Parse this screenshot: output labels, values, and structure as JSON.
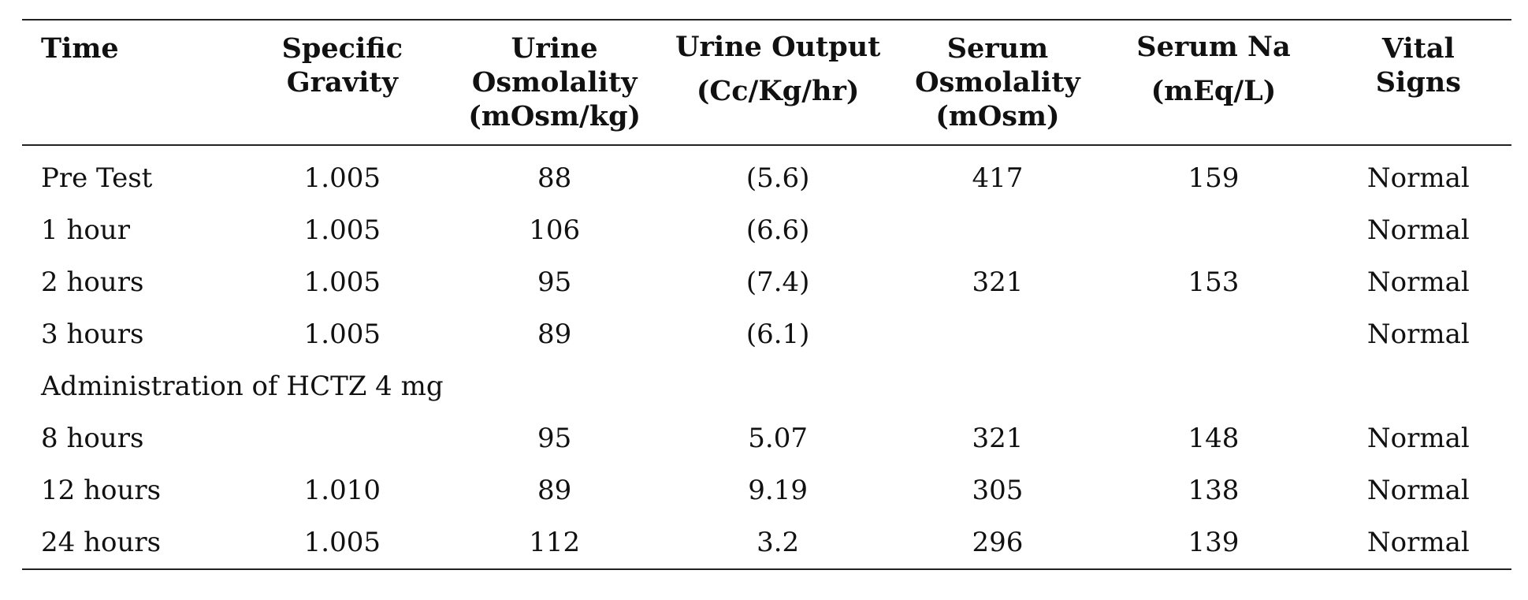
{
  "table": {
    "headers": [
      "Time",
      "Specific Gravity",
      "Urine Osmolality (mOsm/kg)",
      "Urine Output (Cc/Kg/hr)",
      "Serum Osmolality (mOsm)",
      "Serum Na (mEq/L)",
      "Vital Signs"
    ],
    "rows": [
      [
        "Pre Test",
        "1.005",
        "88",
        "(5.6)",
        "417",
        "159",
        "Normal"
      ],
      [
        "1 hour",
        "1.005",
        "106",
        "(6.6)",
        "",
        "",
        "Normal"
      ],
      [
        "2 hours",
        "1.005",
        "95",
        "(7.4)",
        "321",
        "153",
        "Normal"
      ],
      [
        "3 hours",
        "1.005",
        "89",
        "(6.1)",
        "",
        "",
        "Normal"
      ]
    ],
    "section_label": "Administration of HCTZ 4 mg",
    "rows_after": [
      [
        "8 hours",
        "",
        "95",
        "5.07",
        "321",
        "148",
        "Normal"
      ],
      [
        "12 hours",
        "1.010",
        "89",
        "9.19",
        "305",
        "138",
        "Normal"
      ],
      [
        "24 hours",
        "1.005",
        "112",
        "3.2",
        "296",
        "139",
        "Normal"
      ]
    ]
  }
}
